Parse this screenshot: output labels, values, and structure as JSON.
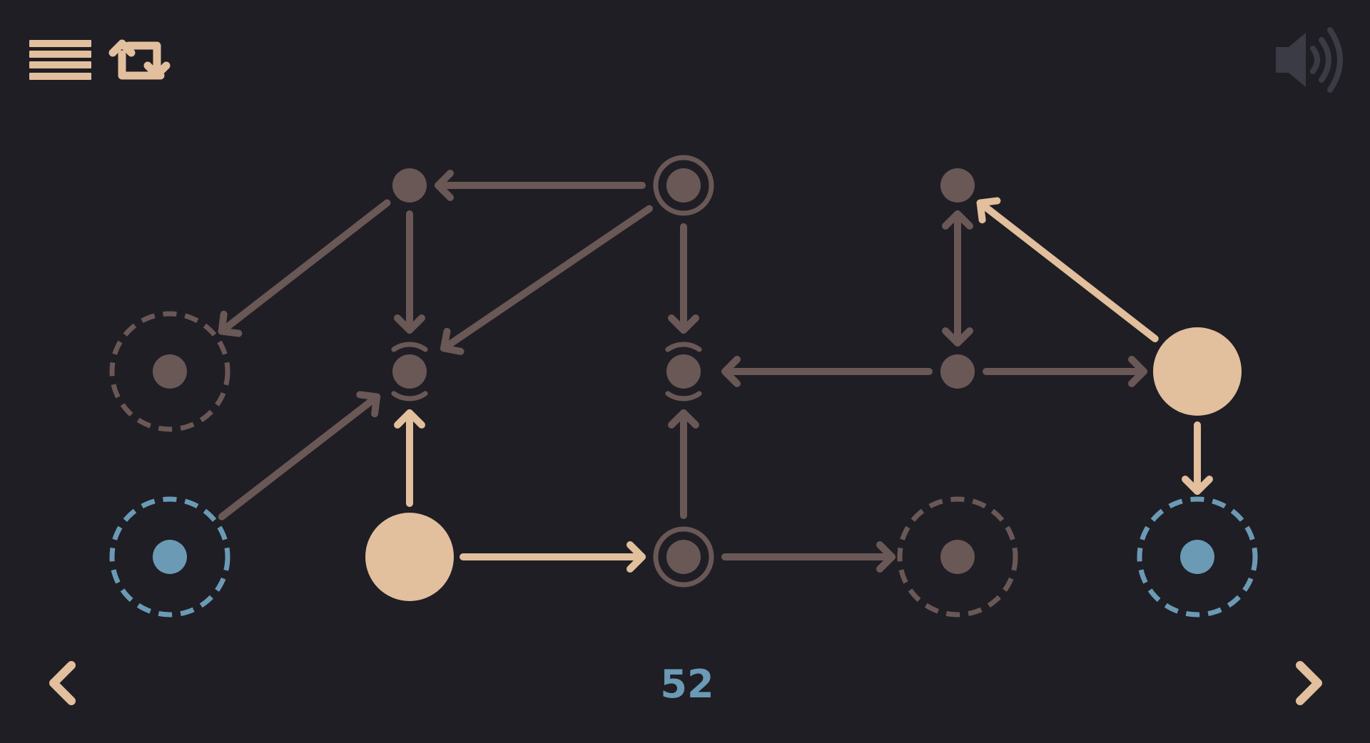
{
  "level": {
    "number": "52"
  },
  "colors": {
    "background": "#1f1e24",
    "accent": "#e2bf9d",
    "inactive": "#6a5856",
    "target": "#6b9ab5",
    "sound_icon": "#3a3b44"
  },
  "icons": {
    "menu": "menu-icon",
    "restart": "restart-icon",
    "sound": "sound-icon",
    "previous": "chevron-left-icon",
    "next": "chevron-right-icon"
  },
  "board": {
    "nodes": [
      {
        "id": "a",
        "kind": "dot"
      },
      {
        "id": "b",
        "kind": "ringed"
      },
      {
        "id": "c",
        "kind": "dot"
      },
      {
        "id": "d",
        "kind": "dashed-slot"
      },
      {
        "id": "e",
        "kind": "bracketed"
      },
      {
        "id": "f",
        "kind": "bracketed"
      },
      {
        "id": "g",
        "kind": "dot"
      },
      {
        "id": "h",
        "kind": "token"
      },
      {
        "id": "i",
        "kind": "target-slot"
      },
      {
        "id": "j",
        "kind": "token"
      },
      {
        "id": "k",
        "kind": "ringed"
      },
      {
        "id": "l",
        "kind": "dashed-slot"
      },
      {
        "id": "m",
        "kind": "target-slot"
      }
    ],
    "edges": [
      {
        "from": "b",
        "to": "a",
        "active": false
      },
      {
        "from": "a",
        "to": "d",
        "active": false
      },
      {
        "from": "a",
        "to": "e",
        "active": false
      },
      {
        "from": "b",
        "to": "e",
        "active": false
      },
      {
        "from": "b",
        "to": "f",
        "active": false
      },
      {
        "from": "g",
        "to": "f",
        "active": false
      },
      {
        "from": "g",
        "to": "c",
        "active": false,
        "bidirectional": true
      },
      {
        "from": "g",
        "to": "h",
        "active": false
      },
      {
        "from": "h",
        "to": "c",
        "active": true
      },
      {
        "from": "h",
        "to": "m",
        "active": true
      },
      {
        "from": "i",
        "to": "e",
        "active": false
      },
      {
        "from": "j",
        "to": "e",
        "active": true
      },
      {
        "from": "j",
        "to": "k",
        "active": true
      },
      {
        "from": "k",
        "to": "f",
        "active": false
      },
      {
        "from": "k",
        "to": "l",
        "active": false
      }
    ]
  }
}
